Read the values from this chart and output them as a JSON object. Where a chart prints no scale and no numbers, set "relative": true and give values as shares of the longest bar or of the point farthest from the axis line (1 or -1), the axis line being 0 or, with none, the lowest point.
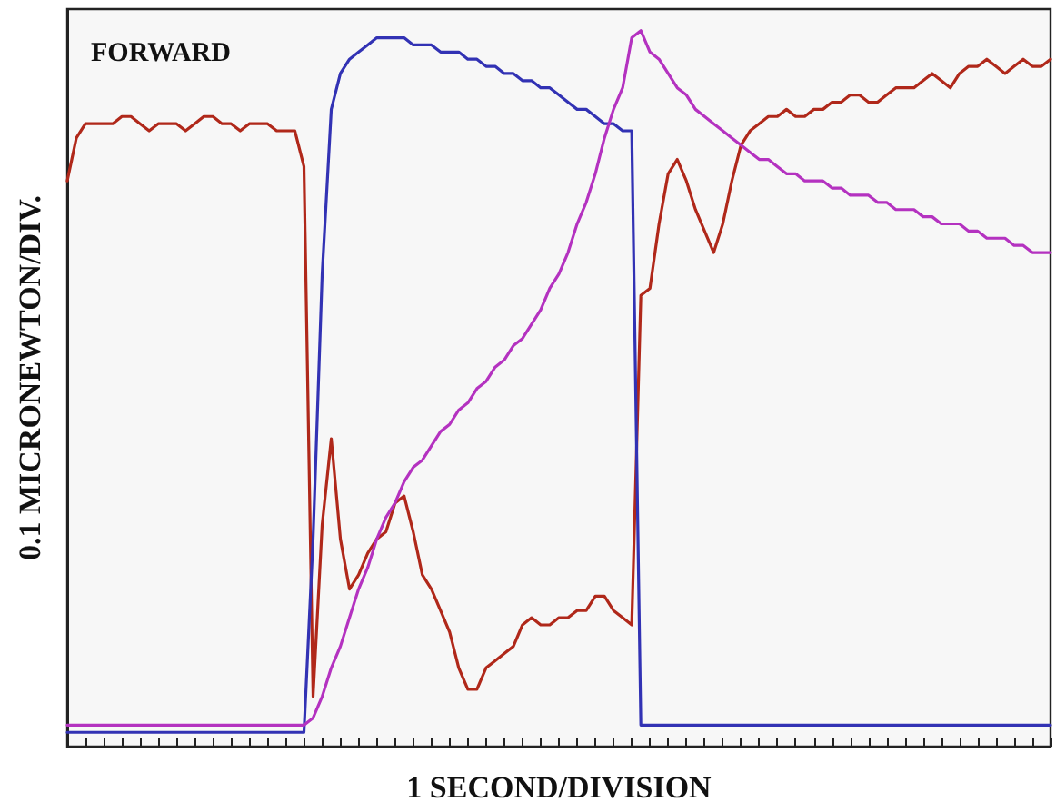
{
  "chart_data": {
    "type": "line",
    "relative": true,
    "xlabel": "1 SECOND/DIVISION",
    "ylabel": "0.1 MICRONEWTON/DIV.",
    "annotations": [
      "FORWARD"
    ],
    "grid": false,
    "marker": "none",
    "line_style": "solid",
    "categories": [
      null,
      null,
      null,
      null,
      null,
      null,
      null,
      null,
      null,
      null,
      null,
      null,
      null,
      null,
      null,
      null,
      null,
      null,
      null,
      null,
      null,
      null,
      null,
      null,
      null,
      null,
      null,
      null,
      null,
      null,
      null,
      null,
      null,
      null,
      null,
      null,
      null,
      null,
      null,
      null,
      null,
      null,
      null,
      null,
      null,
      null,
      null,
      null,
      null,
      null,
      null,
      null,
      null,
      null,
      null,
      null,
      null,
      null,
      null,
      null,
      null,
      null,
      null,
      null,
      null,
      null,
      null,
      null,
      null,
      null,
      null,
      null,
      null,
      null,
      null,
      null,
      null,
      null,
      null,
      null,
      null,
      null,
      null,
      null,
      null,
      null,
      null,
      null,
      null,
      null,
      null,
      null,
      null,
      null,
      null,
      null,
      null,
      null,
      null,
      null,
      null,
      null,
      null,
      null,
      null,
      null,
      null,
      null,
      null
    ],
    "series": [
      {
        "color": "#b0281a",
        "values": [
          0.79,
          0.85,
          0.87,
          0.87,
          0.87,
          0.87,
          0.88,
          0.88,
          0.87,
          0.86,
          0.87,
          0.87,
          0.87,
          0.86,
          0.87,
          0.88,
          0.88,
          0.87,
          0.87,
          0.86,
          0.87,
          0.87,
          0.87,
          0.86,
          0.86,
          0.86,
          0.81,
          0.07,
          0.31,
          0.43,
          0.29,
          0.22,
          0.24,
          0.27,
          0.29,
          0.3,
          0.34,
          0.35,
          0.3,
          0.24,
          0.22,
          0.19,
          0.16,
          0.11,
          0.08,
          0.08,
          0.11,
          0.12,
          0.13,
          0.14,
          0.17,
          0.18,
          0.17,
          0.17,
          0.18,
          0.18,
          0.19,
          0.19,
          0.21,
          0.21,
          0.19,
          0.18,
          0.17,
          0.63,
          0.64,
          0.73,
          0.8,
          0.82,
          0.79,
          0.75,
          0.72,
          0.69,
          0.73,
          0.79,
          0.84,
          0.86,
          0.87,
          0.88,
          0.88,
          0.89,
          0.88,
          0.88,
          0.89,
          0.89,
          0.9,
          0.9,
          0.91,
          0.91,
          0.9,
          0.9,
          0.91,
          0.92,
          0.92,
          0.92,
          0.93,
          0.94,
          0.93,
          0.92,
          0.94,
          0.95,
          0.95,
          0.96,
          0.95,
          0.94,
          0.95,
          0.96,
          0.95,
          0.95,
          0.96
        ]
      },
      {
        "color": "#3232b4",
        "values": [
          0.02,
          0.02,
          0.02,
          0.02,
          0.02,
          0.02,
          0.02,
          0.02,
          0.02,
          0.02,
          0.02,
          0.02,
          0.02,
          0.02,
          0.02,
          0.02,
          0.02,
          0.02,
          0.02,
          0.02,
          0.02,
          0.02,
          0.02,
          0.02,
          0.02,
          0.02,
          0.02,
          0.29,
          0.66,
          0.89,
          0.94,
          0.96,
          0.97,
          0.98,
          0.99,
          0.99,
          0.99,
          0.99,
          0.98,
          0.98,
          0.98,
          0.97,
          0.97,
          0.97,
          0.96,
          0.96,
          0.95,
          0.95,
          0.94,
          0.94,
          0.93,
          0.93,
          0.92,
          0.92,
          0.91,
          0.9,
          0.89,
          0.89,
          0.88,
          0.87,
          0.87,
          0.86,
          0.86,
          0.03,
          0.03,
          0.03,
          0.03,
          0.03,
          0.03,
          0.03,
          0.03,
          0.03,
          0.03,
          0.03,
          0.03,
          0.03,
          0.03,
          0.03,
          0.03,
          0.03,
          0.03,
          0.03,
          0.03,
          0.03,
          0.03,
          0.03,
          0.03,
          0.03,
          0.03,
          0.03,
          0.03,
          0.03,
          0.03,
          0.03,
          0.03,
          0.03,
          0.03,
          0.03,
          0.03,
          0.03,
          0.03,
          0.03,
          0.03,
          0.03,
          0.03,
          0.03,
          0.03,
          0.03,
          0.03
        ]
      },
      {
        "color": "#b432c0",
        "values": [
          0.03,
          0.03,
          0.03,
          0.03,
          0.03,
          0.03,
          0.03,
          0.03,
          0.03,
          0.03,
          0.03,
          0.03,
          0.03,
          0.03,
          0.03,
          0.03,
          0.03,
          0.03,
          0.03,
          0.03,
          0.03,
          0.03,
          0.03,
          0.03,
          0.03,
          0.03,
          0.03,
          0.04,
          0.07,
          0.11,
          0.14,
          0.18,
          0.22,
          0.25,
          0.29,
          0.32,
          0.34,
          0.37,
          0.39,
          0.4,
          0.42,
          0.44,
          0.45,
          0.47,
          0.48,
          0.5,
          0.51,
          0.53,
          0.54,
          0.56,
          0.57,
          0.59,
          0.61,
          0.64,
          0.66,
          0.69,
          0.73,
          0.76,
          0.8,
          0.85,
          0.89,
          0.92,
          0.99,
          1.0,
          0.97,
          0.96,
          0.94,
          0.92,
          0.91,
          0.89,
          0.88,
          0.87,
          0.86,
          0.85,
          0.84,
          0.83,
          0.82,
          0.82,
          0.81,
          0.8,
          0.8,
          0.79,
          0.79,
          0.79,
          0.78,
          0.78,
          0.77,
          0.77,
          0.77,
          0.76,
          0.76,
          0.75,
          0.75,
          0.75,
          0.74,
          0.74,
          0.73,
          0.73,
          0.73,
          0.72,
          0.72,
          0.71,
          0.71,
          0.71,
          0.7,
          0.7,
          0.69,
          0.69,
          0.69
        ]
      }
    ]
  }
}
